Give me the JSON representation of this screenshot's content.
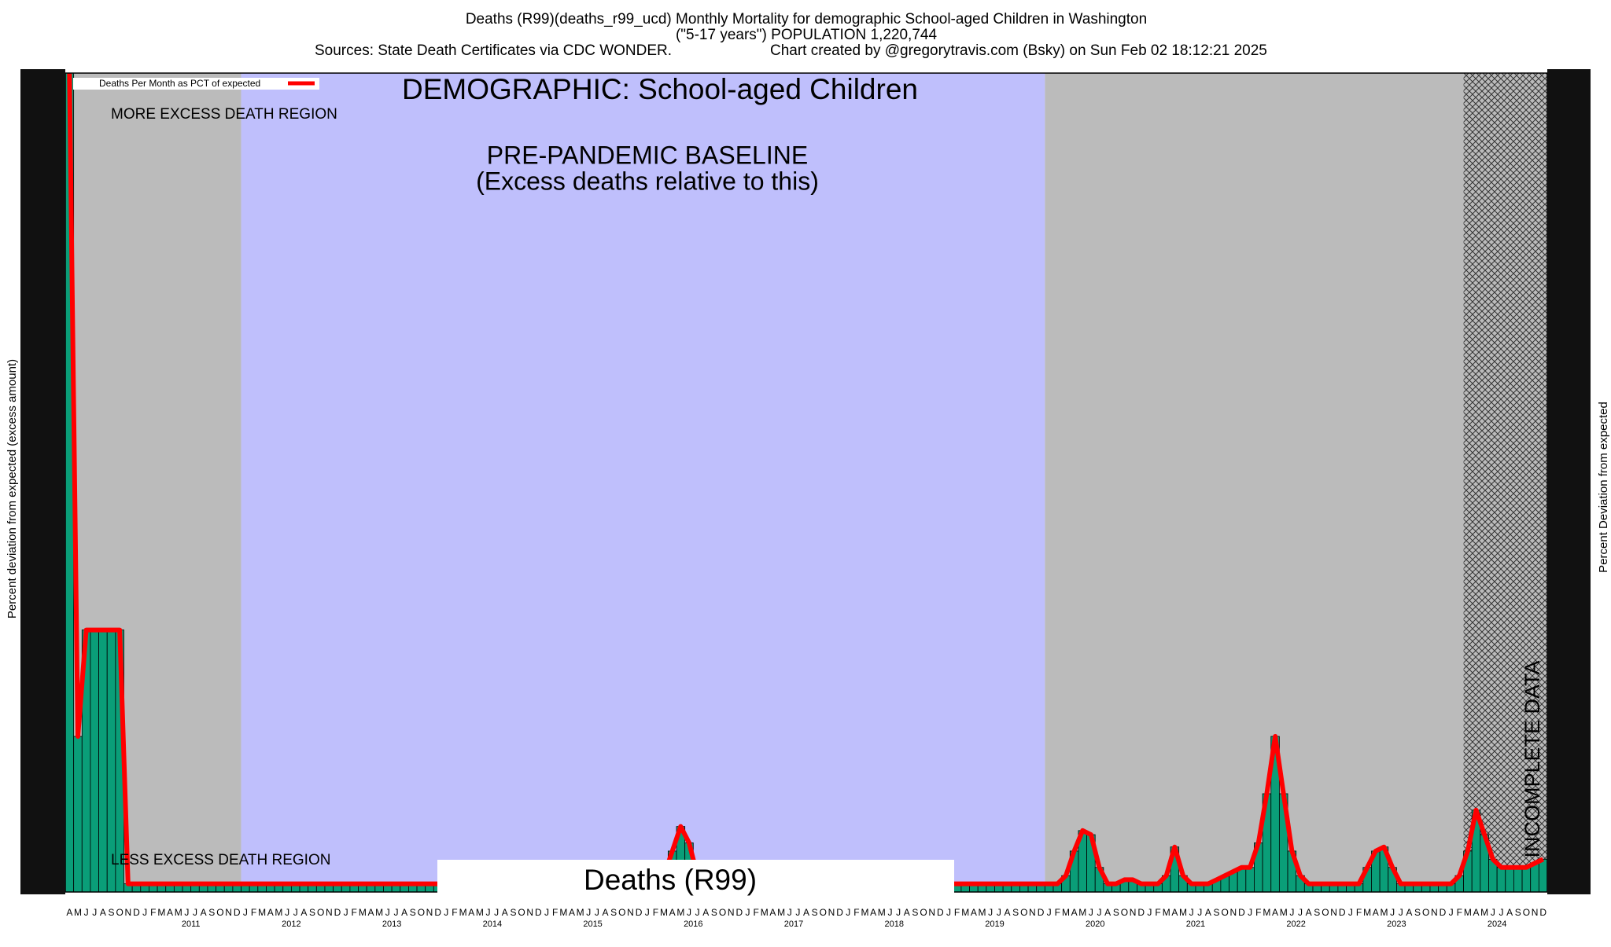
{
  "chart_data": {
    "type": "bar",
    "title": "Deaths (R99)(deaths_r99_ucd) Monthly Mortality for demographic School-aged Children in Washington",
    "subtitle": "(\"5-17 years\") POPULATION 1,220,744",
    "sources": "Sources: State Death Certificates via CDC WONDER.",
    "credit": "Chart created by @gregorytravis.com (Bsky) on Sun Feb 02 18:12:21 2025",
    "heading": "DEMOGRAPHIC: School-aged Children",
    "baseline_label": "PRE-PANDEMIC BASELINE",
    "baseline_note": "(Excess deaths relative to this)",
    "more_region_label": "MORE EXCESS DEATH REGION",
    "less_region_label": "LESS EXCESS DEATH REGION",
    "box_label": "Deaths (R99)",
    "incomplete_label": "INCOMPLETE DATA",
    "y_label": "Percent deviation from expected (excess amount)",
    "y2_label": "Percent Deviation from expected",
    "bar_color": "#0a9e78",
    "categories": [
      "A",
      "M",
      "J",
      "J",
      "A",
      "S",
      "O",
      "N",
      "D",
      "J",
      "F",
      "M",
      "A",
      "M",
      "J",
      "J",
      "A",
      "S",
      "O",
      "N",
      "D",
      "J",
      "F",
      "M",
      "A",
      "M",
      "J",
      "J",
      "A",
      "S",
      "O",
      "N",
      "D",
      "J",
      "F",
      "M",
      "A",
      "M",
      "J",
      "J",
      "A",
      "S",
      "O",
      "N",
      "D",
      "J",
      "F",
      "M",
      "A",
      "M",
      "J",
      "J",
      "A",
      "S",
      "O",
      "N",
      "D",
      "J",
      "F",
      "M",
      "A",
      "M",
      "J",
      "J",
      "A",
      "S",
      "O",
      "N",
      "D",
      "J",
      "F",
      "M",
      "A",
      "M",
      "J",
      "J",
      "A",
      "S",
      "O",
      "N",
      "D",
      "J",
      "F",
      "M",
      "A",
      "M",
      "J",
      "J",
      "A",
      "S",
      "O",
      "N",
      "D",
      "J",
      "F",
      "M",
      "A",
      "M",
      "J",
      "J",
      "A",
      "S",
      "O",
      "N",
      "D",
      "J",
      "F",
      "M",
      "A",
      "M",
      "J",
      "J",
      "A",
      "S",
      "O",
      "N",
      "D",
      "J",
      "F",
      "M",
      "A",
      "M",
      "J",
      "J",
      "A",
      "S",
      "O",
      "N",
      "D",
      "J",
      "F",
      "M",
      "A",
      "M",
      "J",
      "J",
      "A",
      "S",
      "O",
      "N",
      "D",
      "J",
      "F",
      "M",
      "A",
      "M",
      "J",
      "J",
      "A",
      "S",
      "O",
      "N",
      "D",
      "J",
      "F",
      "M",
      "A",
      "M",
      "J",
      "J",
      "A",
      "S",
      "O",
      "N",
      "D",
      "J",
      "F",
      "M",
      "A",
      "M",
      "J",
      "J",
      "A",
      "S",
      "O",
      "N",
      "D"
    ],
    "years": [
      "2011",
      "2012",
      "2013",
      "2014",
      "2015",
      "2016",
      "2017",
      "2018",
      "2019",
      "2020",
      "2021",
      "2022",
      "2023",
      "2024"
    ],
    "series": [
      {
        "name": "Deaths Per Month as PCT of expected",
        "color": "#ff0000",
        "values": [
          100,
          19,
          32,
          32,
          32,
          32,
          32,
          1,
          1,
          1,
          1,
          1,
          1,
          1,
          1,
          1,
          1,
          1,
          1,
          1,
          1,
          1,
          1,
          1,
          1,
          1,
          1,
          1,
          1,
          1,
          1,
          1,
          1,
          1,
          1,
          1,
          1,
          1,
          1,
          1,
          1,
          1,
          1,
          1,
          1,
          1,
          1,
          1,
          1,
          1,
          1,
          1,
          1,
          1,
          1,
          1,
          1,
          1,
          1,
          1,
          1,
          1,
          1,
          1,
          1,
          1,
          1,
          1,
          1,
          1,
          1,
          2,
          5,
          8,
          6,
          2,
          1,
          1,
          1,
          1,
          1,
          1,
          1,
          1,
          1,
          1,
          1,
          1,
          1,
          1,
          1,
          1,
          1,
          1,
          1,
          1,
          1,
          1,
          1,
          1,
          1,
          1,
          1,
          1,
          1,
          1,
          1,
          1,
          1,
          1,
          1,
          1,
          1,
          1,
          1,
          1,
          1,
          1,
          1,
          2,
          5,
          7.5,
          7,
          3,
          1,
          1,
          1.5,
          1.5,
          1,
          1,
          1,
          2,
          5.5,
          2,
          1,
          1,
          1,
          1.5,
          2,
          2.5,
          3,
          3,
          6,
          12,
          19,
          12,
          5,
          2,
          1,
          1,
          1,
          1,
          1,
          1,
          1,
          3,
          5,
          5.5,
          3,
          1,
          1,
          1,
          1,
          1,
          1,
          1,
          2,
          5,
          10,
          7,
          4,
          3,
          3,
          3,
          3,
          3.5,
          4
        ]
      }
    ],
    "ylim": [
      0,
      100
    ]
  }
}
